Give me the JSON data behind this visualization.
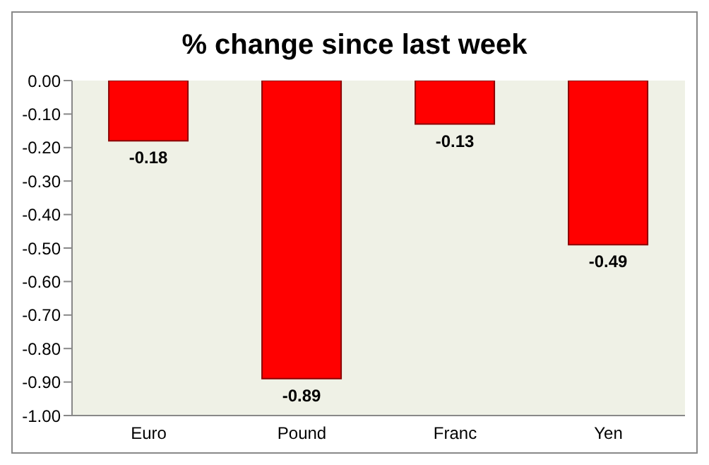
{
  "chart_data": {
    "type": "bar",
    "title": "% change since last week",
    "categories": [
      "Euro",
      "Pound",
      "Franc",
      "Yen"
    ],
    "values": [
      -0.18,
      -0.89,
      -0.13,
      -0.49
    ],
    "color": "#ff0000",
    "ylim": [
      -1,
      0
    ],
    "yticks": [
      {
        "value": 0,
        "label": "0.00"
      },
      {
        "value": -0.1,
        "label": "-0.10"
      },
      {
        "value": -0.2,
        "label": "-0.20"
      },
      {
        "value": -0.3,
        "label": "-0.30"
      },
      {
        "value": -0.4,
        "label": "-0.40"
      },
      {
        "value": -0.5,
        "label": "-0.50"
      },
      {
        "value": -0.6,
        "label": "-0.60"
      },
      {
        "value": -0.7,
        "label": "-0.70"
      },
      {
        "value": -0.8,
        "label": "-0.80"
      },
      {
        "value": -0.9,
        "label": "-0.90"
      },
      {
        "value": -1,
        "label": "-1.00"
      }
    ],
    "data_labels": true,
    "grid": false
  }
}
